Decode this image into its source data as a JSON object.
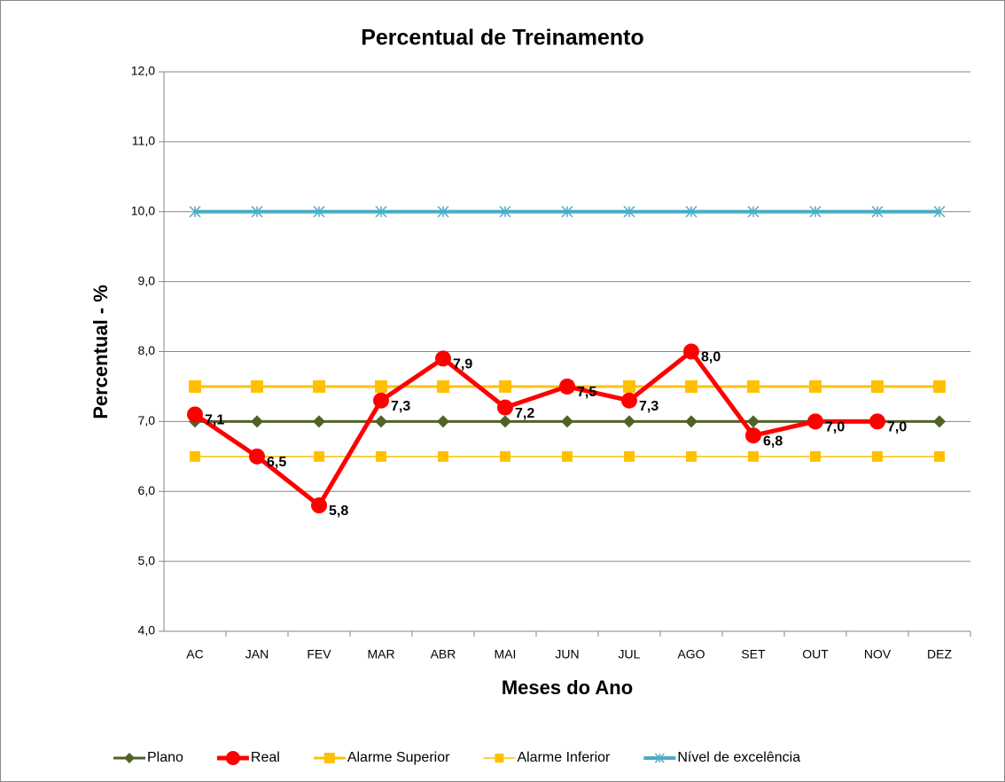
{
  "chart_data": {
    "type": "line",
    "title": "Percentual de Treinamento",
    "x_label": "Meses do Ano",
    "y_label": "Percentual - %",
    "categories": [
      "AC",
      "JAN",
      "FEV",
      "MAR",
      "ABR",
      "MAI",
      "JUN",
      "JUL",
      "AGO",
      "SET",
      "OUT",
      "NOV",
      "DEZ"
    ],
    "ylim": [
      4,
      12
    ],
    "yticks": [
      {
        "value": 4,
        "label": "4,0"
      },
      {
        "value": 5,
        "label": "5,0"
      },
      {
        "value": 6,
        "label": "6,0"
      },
      {
        "value": 7,
        "label": "7,0"
      },
      {
        "value": 8,
        "label": "8,0"
      },
      {
        "value": 9,
        "label": "9,0"
      },
      {
        "value": 10,
        "label": "10,0"
      },
      {
        "value": 11,
        "label": "11,0"
      },
      {
        "value": 12,
        "label": "12,0"
      }
    ],
    "grid": true,
    "legend": "bottom",
    "series": [
      {
        "name": "Plano",
        "color": "#4f6228",
        "marker": "diamond",
        "values": [
          7,
          7,
          7,
          7,
          7,
          7,
          7,
          7,
          7,
          7,
          7,
          7,
          7
        ]
      },
      {
        "name": "Real",
        "color": "#ff0000",
        "marker": "circle",
        "values": [
          7.1,
          6.5,
          5.8,
          7.3,
          7.9,
          7.2,
          7.5,
          7.3,
          8.0,
          6.8,
          7.0,
          7.0,
          null
        ],
        "value_labels": [
          "7,1",
          "6,5",
          "5,8",
          "7,3",
          "7,9",
          "7,2",
          "7,5",
          "7,3",
          "8,0",
          "6,8",
          "7,0",
          "7,0",
          null
        ]
      },
      {
        "name": "Alarme Superior",
        "color": "#ffc000",
        "marker": "square",
        "values": [
          7.5,
          7.5,
          7.5,
          7.5,
          7.5,
          7.5,
          7.5,
          7.5,
          7.5,
          7.5,
          7.5,
          7.5,
          7.5
        ]
      },
      {
        "name": "Alarme Inferior",
        "color": "#ffc000",
        "marker": "square",
        "values": [
          6.5,
          6.5,
          6.5,
          6.5,
          6.5,
          6.5,
          6.5,
          6.5,
          6.5,
          6.5,
          6.5,
          6.5,
          6.5
        ]
      },
      {
        "name": "Nível de excelência",
        "color": "#4bacc6",
        "marker": "asterisk",
        "values": [
          10,
          10,
          10,
          10,
          10,
          10,
          10,
          10,
          10,
          10,
          10,
          10,
          10
        ]
      }
    ]
  }
}
